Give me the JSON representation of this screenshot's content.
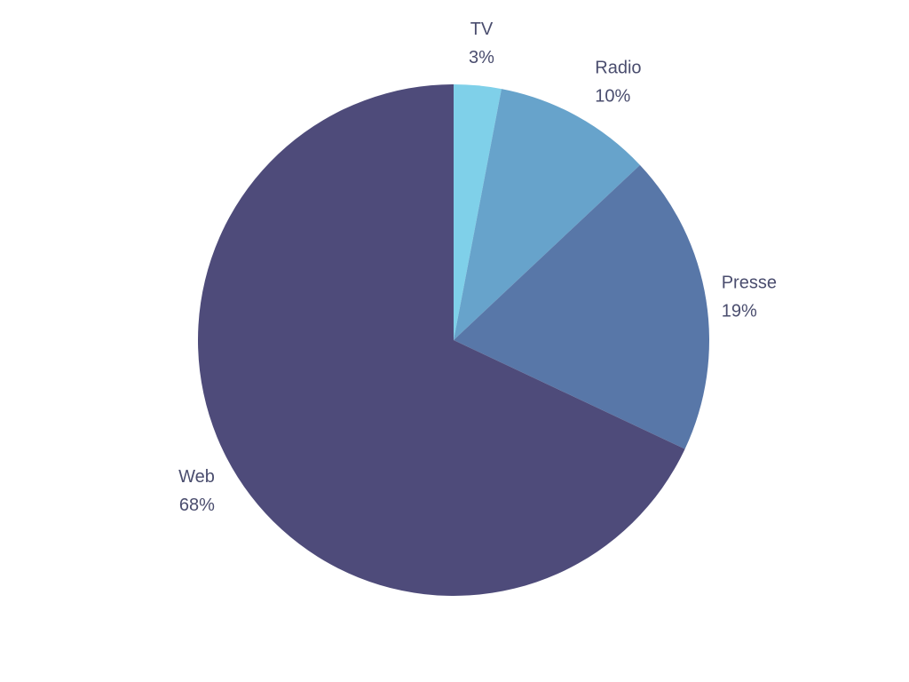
{
  "chart_data": {
    "type": "pie",
    "categories": [
      "TV",
      "Radio",
      "Presse",
      "Web"
    ],
    "values": [
      3,
      10,
      19,
      68
    ],
    "value_labels": [
      "3%",
      "10%",
      "19%",
      "68%"
    ],
    "colors": [
      "#7fd0e9",
      "#67a3cb",
      "#5877a8",
      "#4e4b7a"
    ]
  }
}
